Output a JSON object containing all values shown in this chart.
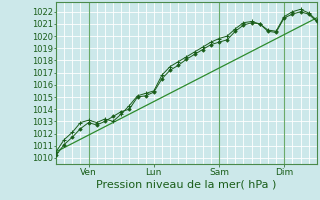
{
  "bg_color": "#cce8ea",
  "grid_color": "#ffffff",
  "line_color": "#1a5e1a",
  "marker_color": "#1a5e1a",
  "trend_color": "#2d8b2d",
  "ylabel_values": [
    1010,
    1011,
    1012,
    1013,
    1014,
    1015,
    1016,
    1017,
    1018,
    1019,
    1020,
    1021,
    1022
  ],
  "ylim": [
    1009.5,
    1022.8
  ],
  "xlim": [
    0,
    96
  ],
  "xtick_positions": [
    12,
    36,
    60,
    84
  ],
  "xtick_labels": [
    "Ven",
    "Lun",
    "Sam",
    "Dim"
  ],
  "xlabel": "Pression niveau de la mer( hPa )",
  "xlabel_fontsize": 8,
  "ylabel_fontsize": 6,
  "xtick_fontsize": 6.5,
  "line1_x": [
    0,
    3,
    6,
    9,
    12,
    15,
    18,
    21,
    24,
    27,
    30,
    33,
    36,
    39,
    42,
    45,
    48,
    51,
    54,
    57,
    60,
    63,
    66,
    69,
    72,
    75,
    78,
    81,
    84,
    87,
    90,
    93,
    96
  ],
  "line1_y": [
    1010.2,
    1011.1,
    1011.7,
    1012.4,
    1012.9,
    1012.7,
    1013.0,
    1013.4,
    1013.8,
    1014.0,
    1015.0,
    1015.1,
    1015.4,
    1016.5,
    1017.2,
    1017.6,
    1018.1,
    1018.5,
    1018.9,
    1019.3,
    1019.5,
    1019.7,
    1020.4,
    1020.9,
    1021.1,
    1021.0,
    1020.4,
    1020.3,
    1021.5,
    1021.8,
    1022.0,
    1021.8,
    1021.2
  ],
  "line2_x": [
    0,
    3,
    6,
    9,
    12,
    15,
    18,
    21,
    24,
    27,
    30,
    33,
    36,
    39,
    42,
    45,
    48,
    51,
    54,
    57,
    60,
    63,
    66,
    69,
    72,
    75,
    78,
    81,
    84,
    87,
    90,
    93,
    96
  ],
  "line2_y": [
    1010.5,
    1011.5,
    1012.1,
    1012.9,
    1013.1,
    1012.9,
    1013.2,
    1013.0,
    1013.6,
    1014.3,
    1015.1,
    1015.3,
    1015.5,
    1016.8,
    1017.5,
    1017.9,
    1018.3,
    1018.7,
    1019.1,
    1019.5,
    1019.8,
    1020.0,
    1020.6,
    1021.1,
    1021.2,
    1021.0,
    1020.5,
    1020.4,
    1021.6,
    1022.0,
    1022.2,
    1021.9,
    1021.3
  ],
  "trend_x": [
    0,
    96
  ],
  "trend_y": [
    1010.5,
    1021.5
  ],
  "vline_positions": [
    12,
    60,
    84
  ],
  "vline_color": "#6aaa6a",
  "spine_color": "#4a8a4a"
}
